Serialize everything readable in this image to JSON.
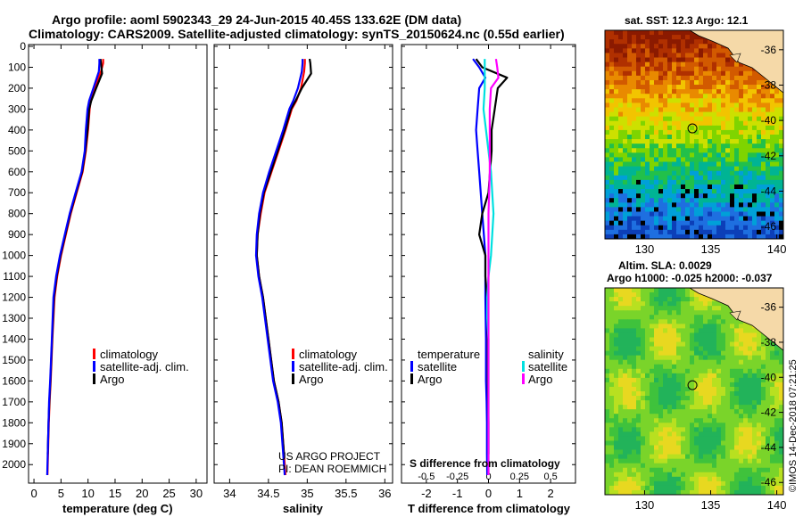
{
  "title_line1": "Argo profile: aoml 5902343_29 24-Jun-2015 40.45S 133.62E (DM data)",
  "title_line2": "Climatology: CARS2009. Satellite-adjusted climatology: synTS_20150624.nc (0.55d earlier)",
  "colors": {
    "climatology": "#ff0000",
    "satellite": "#0000ff",
    "argo": "#000000",
    "cyan": "#00e0e0",
    "magenta": "#ff00ff"
  },
  "chart_data": [
    {
      "type": "line",
      "title": "temperature profile",
      "xlabel": "temperature (deg C)",
      "xlim": [
        -1,
        32
      ],
      "ylim": [
        2080,
        0
      ],
      "x_ticks": [
        "0",
        "5",
        "10",
        "15",
        "20",
        "25",
        "30"
      ],
      "x_tick_values": [
        0,
        5,
        10,
        15,
        20,
        25,
        30
      ],
      "y_ticks": [
        "0",
        "100",
        "200",
        "300",
        "400",
        "500",
        "600",
        "700",
        "800",
        "900",
        "1000",
        "1100",
        "1200",
        "1300",
        "1400",
        "1500",
        "1600",
        "1700",
        "1800",
        "1900",
        "2000"
      ],
      "y_tick_values": [
        0,
        100,
        200,
        300,
        400,
        500,
        600,
        700,
        800,
        900,
        1000,
        1100,
        1200,
        1300,
        1400,
        1500,
        1600,
        1700,
        1800,
        1900,
        2000
      ],
      "legend": [
        "climatology",
        "satellite-adj. clim.",
        "Argo"
      ],
      "series": [
        {
          "name": "climatology",
          "color_key": "climatology",
          "x": [
            12.8,
            12.8,
            12.4,
            11.2,
            10.5,
            10.3,
            10.0,
            9.6,
            9.0,
            7.9,
            6.8,
            5.9,
            5.0,
            4.3,
            3.8,
            3.4,
            3.1,
            2.9,
            2.75,
            2.6,
            2.5
          ],
          "y": [
            60,
            80,
            120,
            200,
            260,
            300,
            400,
            500,
            600,
            700,
            800,
            900,
            1000,
            1100,
            1200,
            1400,
            1600,
            1700,
            1800,
            1950,
            2050
          ]
        },
        {
          "name": "satellite-adj. clim.",
          "color_key": "satellite",
          "x": [
            12.1,
            12.1,
            12.0,
            11.0,
            10.2,
            9.9,
            9.6,
            9.4,
            8.8,
            7.7,
            6.6,
            5.7,
            4.8,
            4.1,
            3.6,
            3.3,
            3.0,
            2.8,
            2.7,
            2.55,
            2.45
          ],
          "y": [
            60,
            80,
            120,
            200,
            260,
            300,
            400,
            500,
            600,
            700,
            800,
            900,
            1000,
            1100,
            1200,
            1400,
            1600,
            1700,
            1800,
            1950,
            2050
          ]
        },
        {
          "name": "Argo",
          "color_key": "argo",
          "x": [
            12.3,
            12.4,
            12.6,
            11.5,
            10.6,
            10.2,
            9.9,
            9.5,
            8.9,
            7.8,
            6.7,
            5.8,
            4.9,
            4.2,
            3.7,
            3.35,
            3.05,
            2.85,
            2.7,
            2.55
          ],
          "y": [
            60,
            80,
            130,
            200,
            260,
            300,
            400,
            500,
            600,
            700,
            800,
            900,
            1000,
            1100,
            1200,
            1400,
            1600,
            1700,
            1800,
            1950
          ]
        }
      ]
    },
    {
      "type": "line",
      "title": "salinity profile",
      "xlabel": "salinity",
      "xlim": [
        33.8,
        36.1
      ],
      "ylim": [
        2080,
        0
      ],
      "x_ticks": [
        "34",
        "34.5",
        "35",
        "35.5",
        "36"
      ],
      "x_tick_values": [
        34,
        34.5,
        35,
        35.5,
        36
      ],
      "legend": [
        "climatology",
        "satellite-adj. clim.",
        "Argo"
      ],
      "annotations": [
        "US ARGO PROJECT",
        "PI: DEAN ROEMMICH"
      ],
      "series": [
        {
          "name": "climatology",
          "color_key": "climatology",
          "x": [
            34.97,
            34.97,
            34.96,
            34.92,
            34.86,
            34.8,
            34.72,
            34.63,
            34.54,
            34.45,
            34.4,
            34.36,
            34.35,
            34.38,
            34.43,
            34.5,
            34.57,
            34.63,
            34.67,
            34.7,
            34.72
          ],
          "y": [
            60,
            80,
            120,
            200,
            260,
            300,
            400,
            500,
            600,
            700,
            800,
            900,
            1000,
            1100,
            1200,
            1400,
            1600,
            1700,
            1800,
            1950,
            2050
          ]
        },
        {
          "name": "satellite-adj. clim.",
          "color_key": "satellite",
          "x": [
            34.94,
            34.94,
            34.93,
            34.88,
            34.82,
            34.77,
            34.69,
            34.6,
            34.51,
            34.43,
            34.38,
            34.35,
            34.34,
            34.37,
            34.42,
            34.49,
            34.56,
            34.62,
            34.66,
            34.69,
            34.71
          ],
          "y": [
            60,
            80,
            120,
            200,
            260,
            300,
            400,
            500,
            600,
            700,
            800,
            900,
            1000,
            1100,
            1200,
            1400,
            1600,
            1700,
            1800,
            1950,
            2050
          ]
        },
        {
          "name": "Argo",
          "color_key": "argo",
          "x": [
            35.03,
            35.04,
            35.05,
            34.93,
            34.85,
            34.79,
            34.71,
            34.62,
            34.53,
            34.44,
            34.39,
            34.36,
            34.35,
            34.38,
            34.43,
            34.5,
            34.57,
            34.63,
            34.67,
            34.7
          ],
          "y": [
            60,
            80,
            130,
            200,
            260,
            300,
            400,
            500,
            600,
            700,
            800,
            900,
            1000,
            1100,
            1200,
            1400,
            1600,
            1700,
            1800,
            1950
          ]
        }
      ]
    },
    {
      "type": "line",
      "title": "difference from climatology",
      "xlabel": "T difference from climatology",
      "xlabel_top": "S difference from climatology",
      "xlim": [
        -2.8,
        2.8
      ],
      "ylim": [
        2080,
        0
      ],
      "x_ticks": [
        "-2",
        "-1",
        "0",
        "1",
        "2"
      ],
      "x_tick_values": [
        -2,
        -1,
        0,
        1,
        2
      ],
      "s_ticks": [
        "-0.5",
        "-0.25",
        "0",
        "0.25",
        "0.5"
      ],
      "s_tick_values": [
        -0.5,
        -0.25,
        0,
        0.25,
        0.5
      ],
      "legend_temperature": [
        "temperature",
        "satellite",
        "Argo"
      ],
      "legend_salinity": [
        "salinity",
        "satellite",
        "Argo"
      ],
      "series": [
        {
          "name": "T satellite",
          "color_key": "satellite",
          "x": [
            -0.5,
            -0.3,
            -0.1,
            -0.3,
            -0.35,
            -0.4,
            -0.35,
            -0.3,
            -0.25,
            -0.2,
            -0.15,
            -0.1,
            -0.1,
            -0.1,
            -0.08,
            -0.08,
            -0.06,
            -0.05,
            -0.05,
            -0.04
          ],
          "y": [
            60,
            100,
            150,
            200,
            300,
            400,
            500,
            600,
            700,
            800,
            900,
            1000,
            1100,
            1200,
            1400,
            1600,
            1700,
            1800,
            1950,
            2050
          ]
        },
        {
          "name": "T Argo",
          "color_key": "argo",
          "x": [
            -0.4,
            -0.2,
            0.6,
            0.3,
            0.2,
            0.1,
            0.1,
            0.05,
            0.0,
            -0.2,
            -0.3,
            -0.1,
            -0.1,
            -0.05,
            -0.02,
            -0.02,
            -0.01,
            0.0,
            0.0
          ],
          "y": [
            60,
            100,
            150,
            200,
            300,
            400,
            500,
            600,
            700,
            800,
            900,
            1000,
            1100,
            1200,
            1400,
            1600,
            1700,
            1800,
            1950
          ]
        },
        {
          "name": "S satellite",
          "color_key": "cyan",
          "x": [
            -0.03,
            -0.03,
            -0.03,
            -0.04,
            -0.02,
            0.0,
            0.02,
            0.03,
            0.04,
            0.03,
            0.02,
            0.0,
            -0.01,
            -0.01,
            0.0,
            0.0,
            0.0,
            0.0,
            0.0
          ],
          "y": [
            60,
            100,
            200,
            300,
            400,
            500,
            600,
            700,
            800,
            900,
            1000,
            1100,
            1200,
            1300,
            1400,
            1600,
            1700,
            1800,
            2050
          ]
        },
        {
          "name": "S Argo",
          "color_key": "magenta",
          "x": [
            0.06,
            0.07,
            0.08,
            0.02,
            0.01,
            0.01,
            0.01,
            0.0,
            0.0,
            0.0,
            0.0,
            0.0,
            0.0,
            0.0,
            0.0
          ],
          "y": [
            60,
            100,
            150,
            200,
            300,
            400,
            600,
            800,
            1000,
            1200,
            1400,
            1600,
            1800,
            1950,
            2050
          ]
        }
      ]
    },
    {
      "type": "heatmap",
      "title": "sat. SST: 12.3 Argo: 12.1",
      "x_ticks": [
        "130",
        "135",
        "140"
      ],
      "x_tick_values": [
        130,
        135,
        140
      ],
      "y_ticks": [
        "-36",
        "-38",
        "-40",
        "-42",
        "-44",
        "-46"
      ],
      "y_tick_values": [
        -36,
        -38,
        -40,
        -42,
        -44,
        -46
      ],
      "xlim": [
        127,
        140.5
      ],
      "ylim": [
        -46.7,
        -34.9
      ],
      "marker": {
        "lon": 133.62,
        "lat": -40.45
      }
    },
    {
      "type": "heatmap",
      "title_line1": "Altim. SLA: 0.0029",
      "title_line2": "Argo h1000: -0.025 h2000: -0.037",
      "x_ticks": [
        "130",
        "135",
        "140"
      ],
      "x_tick_values": [
        130,
        135,
        140
      ],
      "y_ticks": [
        "-36",
        "-38",
        "-40",
        "-42",
        "-44",
        "-46"
      ],
      "y_tick_values": [
        -36,
        -38,
        -40,
        -42,
        -44,
        -46
      ],
      "xlim": [
        127,
        140.5
      ],
      "ylim": [
        -46.7,
        -34.9
      ],
      "marker": {
        "lon": 133.62,
        "lat": -40.45
      }
    }
  ],
  "watermark": "©IMOS 14-Dec-2018 07:21:25"
}
